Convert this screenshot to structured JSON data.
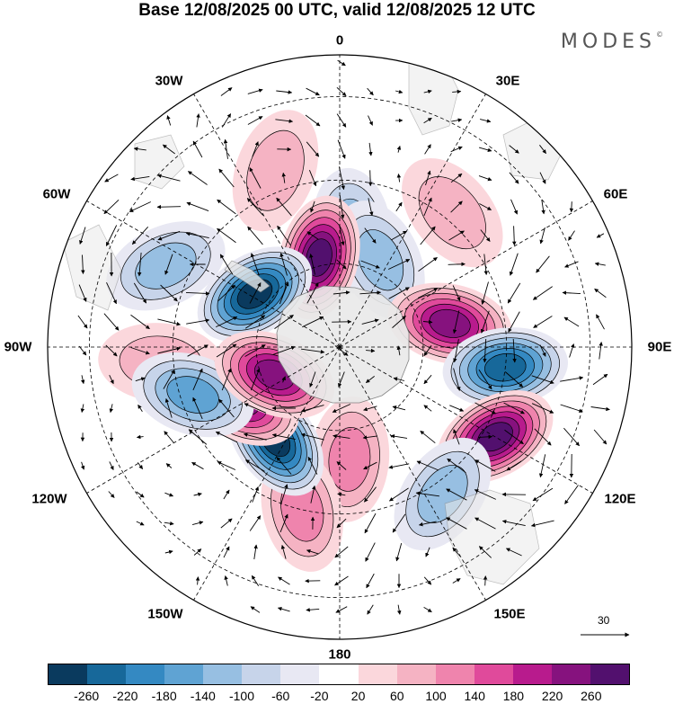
{
  "title": "Base 12/08/2025 00 UTC, valid 12/08/2025 12 UTC",
  "brand": "MODES",
  "brand_mark": "©",
  "longitude_labels": {
    "lon_0": "0",
    "lon_30e": "30E",
    "lon_60e": "60E",
    "lon_90e": "90E",
    "lon_120e": "120E",
    "lon_150e": "150E",
    "lon_180": "180",
    "lon_150w": "150W",
    "lon_120w": "120W",
    "lon_90w": "90W",
    "lon_60w": "60W",
    "lon_30w": "30W"
  },
  "reference_vector_label": "30",
  "colorbar": {
    "colors": [
      "#0a3a5e",
      "#17689a",
      "#3489c2",
      "#5fa3d3",
      "#97bfe2",
      "#c7d4ea",
      "#e8e8f3",
      "#ffffff",
      "#fbd7dc",
      "#f5b3c3",
      "#ef84ad",
      "#e04a9b",
      "#b81b8d",
      "#86127e",
      "#52106e"
    ],
    "tick_labels": [
      "-260",
      "-220",
      "-180",
      "-140",
      "-100",
      "-60",
      "-20",
      "20",
      "60",
      "100",
      "140",
      "180",
      "220",
      "260"
    ]
  },
  "anomalies": [
    {
      "lon": 6,
      "lat": -62,
      "value": -80
    },
    {
      "lon": 40,
      "lat": -48,
      "value": 60
    },
    {
      "lon": -20,
      "lat": -45,
      "value": 70
    },
    {
      "lon": -65,
      "lat": -44,
      "value": -90
    },
    {
      "lon": -95,
      "lat": -47,
      "value": 50
    },
    {
      "lon": 25,
      "lat": -67,
      "value": -110
    },
    {
      "lon": -13,
      "lat": -68,
      "value": 250
    },
    {
      "lon": -58,
      "lat": -66,
      "value": -250
    },
    {
      "lon": 78,
      "lat": -63,
      "value": 210
    },
    {
      "lon": 97,
      "lat": -50,
      "value": -230
    },
    {
      "lon": 120,
      "lat": -47,
      "value": 250
    },
    {
      "lon": 145,
      "lat": -47,
      "value": -90
    },
    {
      "lon": 175,
      "lat": -63,
      "value": 90
    },
    {
      "lon": -167,
      "lat": -50,
      "value": 80
    },
    {
      "lon": -145,
      "lat": -63,
      "value": -240
    },
    {
      "lon": -118,
      "lat": -63,
      "value": 230
    },
    {
      "lon": -108,
      "lat": -53,
      "value": -140
    },
    {
      "lon": -113,
      "lat": -73,
      "value": 210
    }
  ]
}
